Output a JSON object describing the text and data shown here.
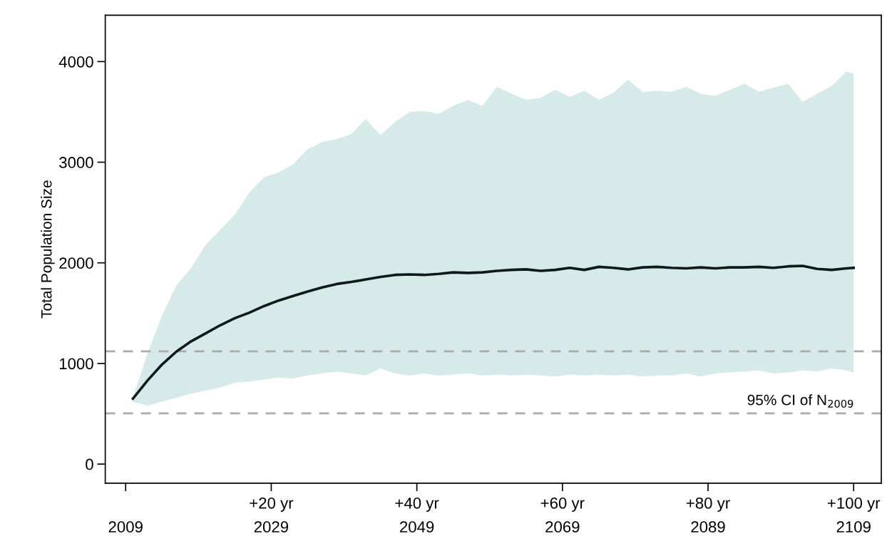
{
  "chart_data": {
    "type": "line",
    "ylabel": "Total Population Size",
    "xlim": [
      2006.2,
      2112.8
    ],
    "ylim": [
      -190,
      4460
    ],
    "xticks": [
      2009,
      2029,
      2049,
      2069,
      2089,
      2109
    ],
    "x2lim": [
      -2.8,
      103.8
    ],
    "x2ticks": [
      {
        "value": 0,
        "label": null
      },
      {
        "value": 20,
        "label": "+20 yr"
      },
      {
        "value": 40,
        "label": "+40 yr"
      },
      {
        "value": 60,
        "label": "+60 yr"
      },
      {
        "value": 80,
        "label": "+80 yr"
      },
      {
        "value": 100,
        "label": "+100 yr"
      }
    ],
    "yticks": [
      0,
      1000,
      2000,
      3000,
      4000
    ],
    "grid": false,
    "marker": "none",
    "line_style": "solid",
    "series": [
      {
        "color": "#0f1a18",
        "x": [
          2010,
          2012,
          2014,
          2016,
          2018,
          2020,
          2022,
          2024,
          2026,
          2028,
          2030,
          2032,
          2034,
          2036,
          2038,
          2040,
          2042,
          2044,
          2046,
          2048,
          2050,
          2052,
          2054,
          2056,
          2058,
          2060,
          2062,
          2064,
          2066,
          2068,
          2070,
          2072,
          2074,
          2076,
          2078,
          2080,
          2082,
          2084,
          2086,
          2088,
          2090,
          2092,
          2094,
          2096,
          2098,
          2100,
          2102,
          2104,
          2106,
          2108,
          2109
        ],
        "values": [
          650,
          830,
          990,
          1120,
          1220,
          1300,
          1380,
          1450,
          1505,
          1570,
          1625,
          1670,
          1715,
          1755,
          1790,
          1810,
          1835,
          1860,
          1880,
          1885,
          1880,
          1890,
          1905,
          1900,
          1905,
          1920,
          1930,
          1935,
          1920,
          1930,
          1950,
          1930,
          1960,
          1950,
          1935,
          1955,
          1960,
          1950,
          1945,
          1955,
          1945,
          1955,
          1955,
          1960,
          1950,
          1965,
          1970,
          1940,
          1930,
          1945,
          1950
        ],
        "upper": [
          660,
          1100,
          1480,
          1780,
          1950,
          2180,
          2330,
          2480,
          2700,
          2850,
          2900,
          2980,
          3130,
          3200,
          3230,
          3280,
          3430,
          3270,
          3400,
          3500,
          3510,
          3480,
          3560,
          3620,
          3560,
          3750,
          3680,
          3620,
          3640,
          3720,
          3650,
          3710,
          3620,
          3690,
          3820,
          3700,
          3710,
          3700,
          3750,
          3680,
          3660,
          3720,
          3780,
          3700,
          3740,
          3780,
          3600,
          3680,
          3760,
          3900,
          3880
        ],
        "lower": [
          620,
          580,
          620,
          660,
          700,
          730,
          760,
          810,
          820,
          840,
          860,
          850,
          880,
          900,
          920,
          900,
          880,
          950,
          900,
          880,
          900,
          880,
          890,
          900,
          880,
          890,
          880,
          890,
          880,
          870,
          890,
          880,
          890,
          880,
          890,
          870,
          880,
          880,
          900,
          870,
          900,
          910,
          920,
          930,
          900,
          910,
          930,
          920,
          950,
          930,
          910
        ]
      }
    ],
    "ref_lines": [
      {
        "axis": "y",
        "value": 1120,
        "color": "#aaaaaa",
        "line_style": "dashed"
      },
      {
        "axis": "y",
        "value": 505,
        "color": "#aaaaaa",
        "line_style": "dashed"
      }
    ],
    "annotations": [
      "95% CI of N$_{2009}$"
    ]
  }
}
